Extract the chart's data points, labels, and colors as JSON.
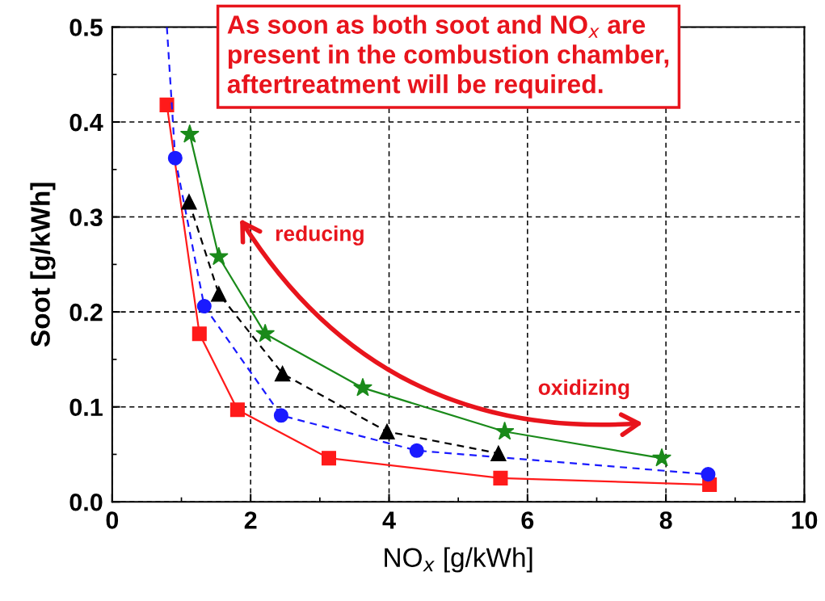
{
  "chart_data": {
    "type": "line",
    "xlabel": "NO$_{x}$ [g/kWh]",
    "ylabel": "Soot [g/kWh]",
    "xlim": [
      0,
      10
    ],
    "xticks": [
      0,
      2,
      4,
      6,
      8,
      10
    ],
    "ylim": [
      0,
      0.5
    ],
    "yticks": [
      {
        "value": 0,
        "label": "0.0"
      },
      {
        "value": 0.1,
        "label": "0.1"
      },
      {
        "value": 0.2,
        "label": "0.2"
      },
      {
        "value": 0.3,
        "label": "0.3"
      },
      {
        "value": 0.4,
        "label": "0.4"
      },
      {
        "value": 0.5,
        "label": "0.5"
      }
    ],
    "grid": true,
    "legend": false,
    "series": [
      {
        "color": "#ff1a1a",
        "marker": "square",
        "line_style": "solid",
        "x": [
          0.79,
          1.26,
          1.81,
          3.13,
          5.61,
          8.63
        ],
        "values": [
          0.418,
          0.177,
          0.097,
          0.046,
          0.025,
          0.018
        ]
      },
      {
        "color": "#1a1aff",
        "marker": "circle",
        "line_style": "dashed",
        "x": [
          0.91,
          1.33,
          2.44,
          4.4,
          8.61
        ],
        "values": [
          0.362,
          0.206,
          0.091,
          0.054,
          0.029
        ]
      },
      {
        "color": "#1a1aff",
        "marker": "none",
        "line_style": "dashed",
        "x": [
          0.79,
          0.91
        ],
        "values": [
          0.5,
          0.362
        ]
      },
      {
        "color": "#000000",
        "marker": "triangle",
        "line_style": "dashed",
        "x": [
          1.11,
          1.54,
          2.46,
          3.97,
          5.58
        ],
        "values": [
          0.316,
          0.219,
          0.135,
          0.074,
          0.051
        ]
      },
      {
        "color": "#1a8a1a",
        "marker": "star",
        "line_style": "solid",
        "x": [
          1.12,
          1.54,
          2.21,
          3.62,
          5.67,
          7.94
        ],
        "values": [
          0.387,
          0.258,
          0.177,
          0.12,
          0.074,
          0.046
        ]
      }
    ],
    "annotations": [
      "As soon as both soot and NO$_{x}$ are\npresent in the combustion chamber,\naftertreatment will be required.",
      "reducing",
      "oxidizing"
    ]
  }
}
